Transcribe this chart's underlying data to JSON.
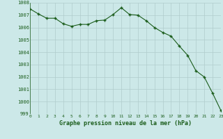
{
  "hours": [
    0,
    1,
    2,
    3,
    4,
    5,
    6,
    7,
    8,
    9,
    10,
    11,
    12,
    13,
    14,
    15,
    16,
    17,
    18,
    19,
    20,
    21,
    22,
    23
  ],
  "pressure": [
    1007.5,
    1007.1,
    1006.75,
    1006.75,
    1006.3,
    1006.1,
    1006.25,
    1006.25,
    1006.55,
    1006.6,
    1007.05,
    1007.6,
    1007.05,
    1007.0,
    1006.55,
    1006.0,
    1005.6,
    1005.3,
    1004.5,
    1003.75,
    1002.5,
    1002.0,
    1000.7,
    999.3
  ],
  "ylim": [
    999,
    1008
  ],
  "yticks": [
    999,
    1000,
    1001,
    1002,
    1003,
    1004,
    1005,
    1006,
    1007,
    1008
  ],
  "xticks": [
    0,
    1,
    2,
    3,
    4,
    5,
    6,
    7,
    8,
    9,
    10,
    11,
    12,
    13,
    14,
    15,
    16,
    17,
    18,
    19,
    20,
    21,
    22,
    23
  ],
  "line_color": "#1a5c1a",
  "marker_color": "#1a5c1a",
  "bg_color": "#cce8e8",
  "grid_color": "#b0cccc",
  "xlabel": "Graphe pression niveau de la mer (hPa)",
  "xlabel_color": "#1a5c1a",
  "tick_color": "#1a5c1a"
}
